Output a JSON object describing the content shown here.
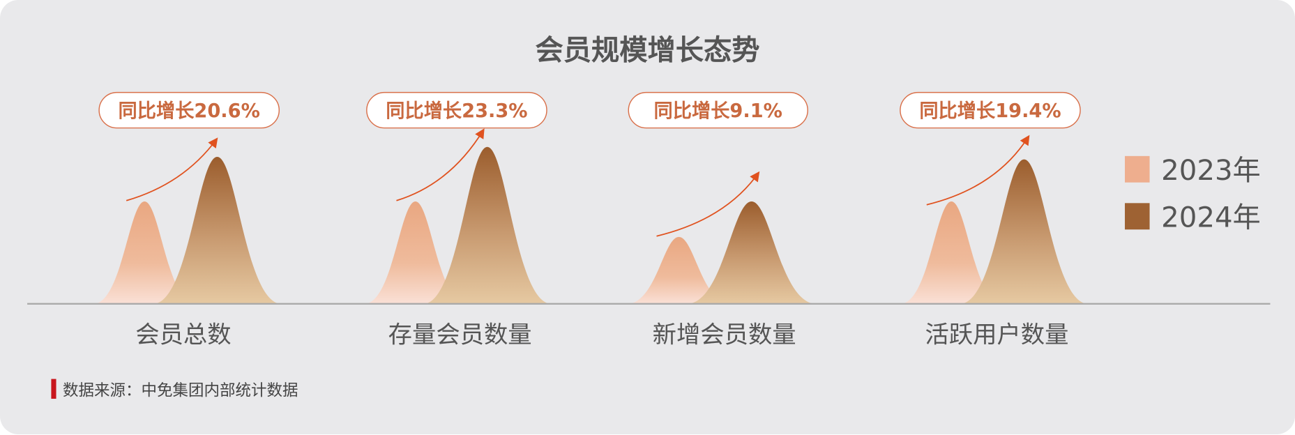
{
  "chart_data": {
    "type": "area",
    "title": "会员规模增长态势",
    "categories": [
      "会员总数",
      "存量会员数量",
      "新增会员数量",
      "活跃用户数量"
    ],
    "series": [
      {
        "name": "2023年",
        "color": "#eeae8e"
      },
      {
        "name": "2024年",
        "color": "#9e6233"
      }
    ],
    "annotations": [
      "同比增长20.6%",
      "同比增长23.3%",
      "同比增长9.1%",
      "同比增长19.4%"
    ],
    "yoy_growth_percent": [
      20.6,
      23.3,
      9.1,
      19.4
    ],
    "legend": "right",
    "grid": false,
    "accent_color": "#e0521f",
    "source": "数据来源：中免集团内部统计数据"
  }
}
